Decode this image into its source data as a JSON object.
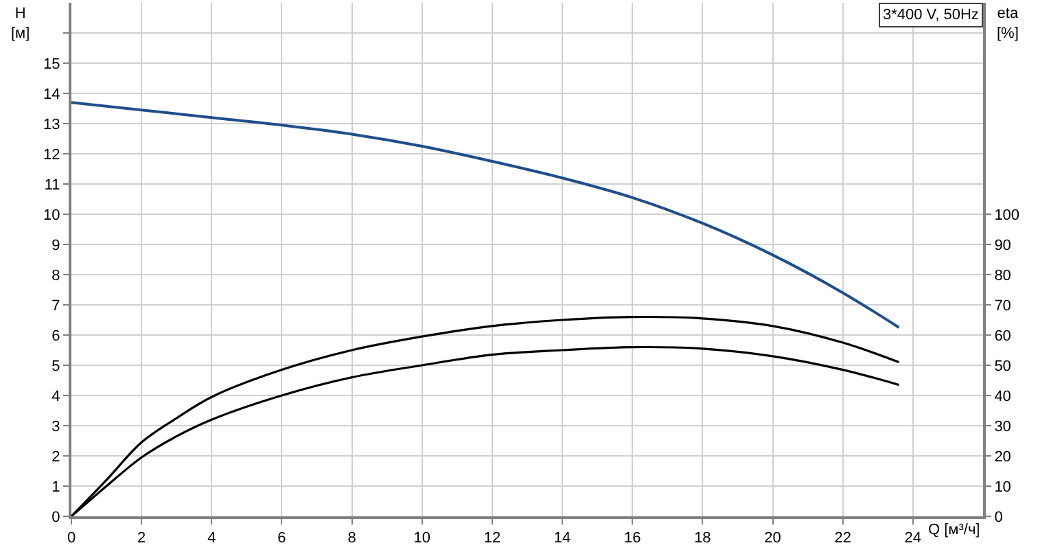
{
  "chart_data": {
    "type": "line",
    "ylabel": "H\n[м]",
    "y2label": "eta\n[%]",
    "xlabel": "Q [м³/ч]",
    "annotations": [
      "3*400 V, 50Hz"
    ],
    "xlim": [
      0,
      26
    ],
    "xticks": [
      0,
      2,
      4,
      6,
      8,
      10,
      12,
      14,
      16,
      18,
      20,
      22,
      24
    ],
    "ylim": [
      0,
      17
    ],
    "yticks": [
      0,
      1,
      2,
      3,
      4,
      5,
      6,
      7,
      8,
      9,
      10,
      11,
      12,
      13,
      14,
      15,
      {
        "value": 16,
        "label": null
      }
    ],
    "y2lim": [
      0,
      170
    ],
    "y2ticks": [
      0,
      10,
      20,
      30,
      40,
      50,
      60,
      70,
      80,
      90,
      100
    ],
    "grid": true,
    "marker": "none",
    "line_style": "solid",
    "series": [
      {
        "color": "#1f4e8c",
        "x": [
          0,
          2,
          4,
          6,
          8,
          10,
          12,
          14,
          16,
          18,
          20,
          22,
          23.6
        ],
        "values": [
          13.7,
          13.45,
          13.2,
          12.95,
          12.65,
          12.25,
          11.75,
          11.2,
          10.55,
          9.7,
          8.65,
          7.4,
          6.25
        ]
      },
      {
        "color": "#000000",
        "axis": "y2",
        "x": [
          0,
          1,
          2,
          3,
          4,
          6,
          8,
          10,
          12,
          14,
          16,
          18,
          20,
          22,
          23.6
        ],
        "values": [
          0,
          12,
          24.5,
          32.5,
          39.5,
          48.5,
          55,
          59.5,
          63,
          65,
          66,
          65.5,
          63,
          57.5,
          51
        ]
      },
      {
        "color": "#000000",
        "axis": "y2",
        "x": [
          0,
          1,
          2,
          3,
          4,
          6,
          8,
          10,
          12,
          14,
          16,
          18,
          20,
          22,
          23.6
        ],
        "values": [
          0,
          10,
          19.5,
          26.5,
          32,
          40,
          46,
          50,
          53.5,
          55,
          56,
          55.5,
          53,
          48.5,
          43.5
        ]
      }
    ]
  }
}
